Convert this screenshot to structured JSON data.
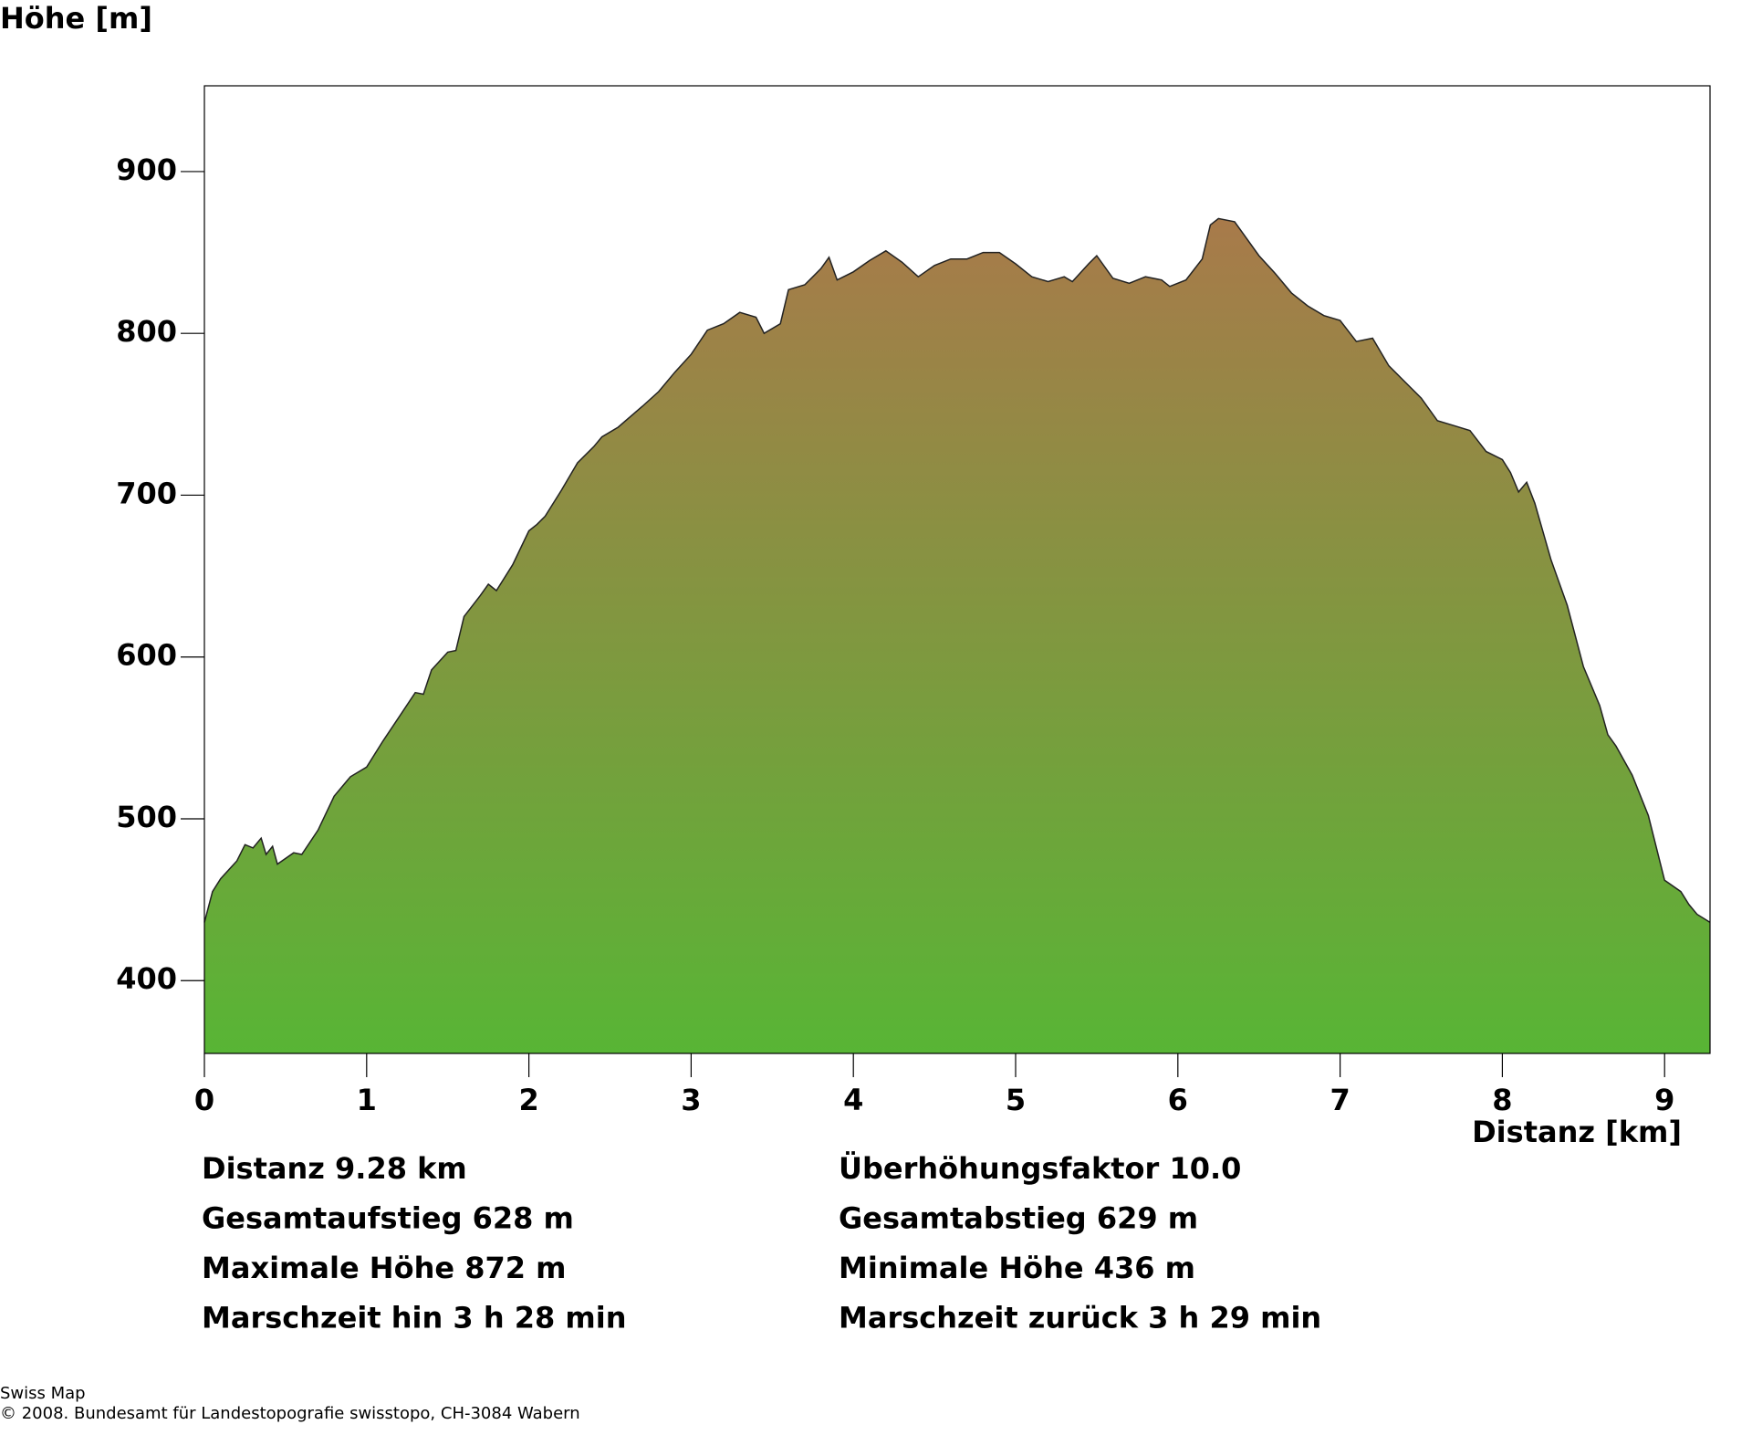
{
  "chart_data": {
    "type": "area",
    "y_label": "Höhe [m]",
    "x_label": "Distanz [km]",
    "x": [
      0,
      0.05,
      0.1,
      0.2,
      0.25,
      0.3,
      0.35,
      0.38,
      0.42,
      0.45,
      0.55,
      0.6,
      0.7,
      0.8,
      0.9,
      1.0,
      1.1,
      1.2,
      1.3,
      1.35,
      1.4,
      1.5,
      1.55,
      1.6,
      1.7,
      1.75,
      1.8,
      1.9,
      2.0,
      2.05,
      2.1,
      2.2,
      2.3,
      2.4,
      2.45,
      2.55,
      2.7,
      2.8,
      2.9,
      3.0,
      3.1,
      3.2,
      3.3,
      3.4,
      3.45,
      3.55,
      3.6,
      3.7,
      3.8,
      3.85,
      3.9,
      4.0,
      4.1,
      4.2,
      4.3,
      4.4,
      4.5,
      4.6,
      4.7,
      4.8,
      4.9,
      5.0,
      5.1,
      5.2,
      5.3,
      5.35,
      5.45,
      5.5,
      5.6,
      5.7,
      5.8,
      5.9,
      5.95,
      6.05,
      6.15,
      6.2,
      6.25,
      6.35,
      6.5,
      6.6,
      6.7,
      6.8,
      6.9,
      7.0,
      7.1,
      7.2,
      7.3,
      7.4,
      7.5,
      7.6,
      7.7,
      7.8,
      7.9,
      8.0,
      8.05,
      8.1,
      8.15,
      8.2,
      8.3,
      8.4,
      8.5,
      8.6,
      8.65,
      8.7,
      8.8,
      8.9,
      9.0,
      9.1,
      9.15,
      9.2,
      9.28
    ],
    "values": [
      436,
      455,
      463,
      474,
      484,
      482,
      488,
      478,
      483,
      472,
      479,
      478,
      493,
      514,
      526,
      532,
      548,
      563,
      578,
      577,
      592,
      603,
      604,
      625,
      638,
      645,
      641,
      657,
      678,
      682,
      687,
      703,
      720,
      730,
      736,
      742,
      755,
      764,
      776,
      787,
      802,
      806,
      813,
      810,
      800,
      806,
      827,
      830,
      840,
      847,
      833,
      838,
      845,
      851,
      844,
      835,
      842,
      846,
      846,
      850,
      850,
      843,
      835,
      832,
      835,
      832,
      843,
      848,
      834,
      831,
      835,
      833,
      829,
      833,
      846,
      867,
      871,
      869,
      848,
      837,
      825,
      817,
      811,
      808,
      795,
      797,
      780,
      770,
      760,
      746,
      743,
      740,
      727,
      722,
      714,
      702,
      708,
      695,
      660,
      632,
      594,
      570,
      552,
      545,
      527,
      502,
      462,
      455,
      447,
      441,
      436
    ],
    "gradient": [
      "#a87a4a",
      "#58b535"
    ],
    "xlim": [
      0,
      9.28
    ],
    "ylim": [
      355,
      953
    ],
    "xticks": [
      0,
      1,
      2,
      3,
      4,
      5,
      6,
      7,
      8,
      9
    ],
    "yticks": [
      400,
      500,
      600,
      700,
      800,
      900
    ]
  },
  "stats": [
    [
      "Distanz 9.28 km",
      "Überhöhungsfaktor 10.0"
    ],
    [
      "Gesamtaufstieg  628 m",
      "Gesamtabstieg  629 m"
    ],
    [
      "Maximale Höhe  872 m",
      "Minimale Höhe  436 m"
    ],
    [
      "Marschzeit hin  3 h 28 min",
      "Marschzeit zurück  3 h 29 min"
    ]
  ],
  "source": [
    "Swiss Map",
    "© 2008. Bundesamt für Landestopografie swisstopo, CH-3084 Wabern"
  ]
}
